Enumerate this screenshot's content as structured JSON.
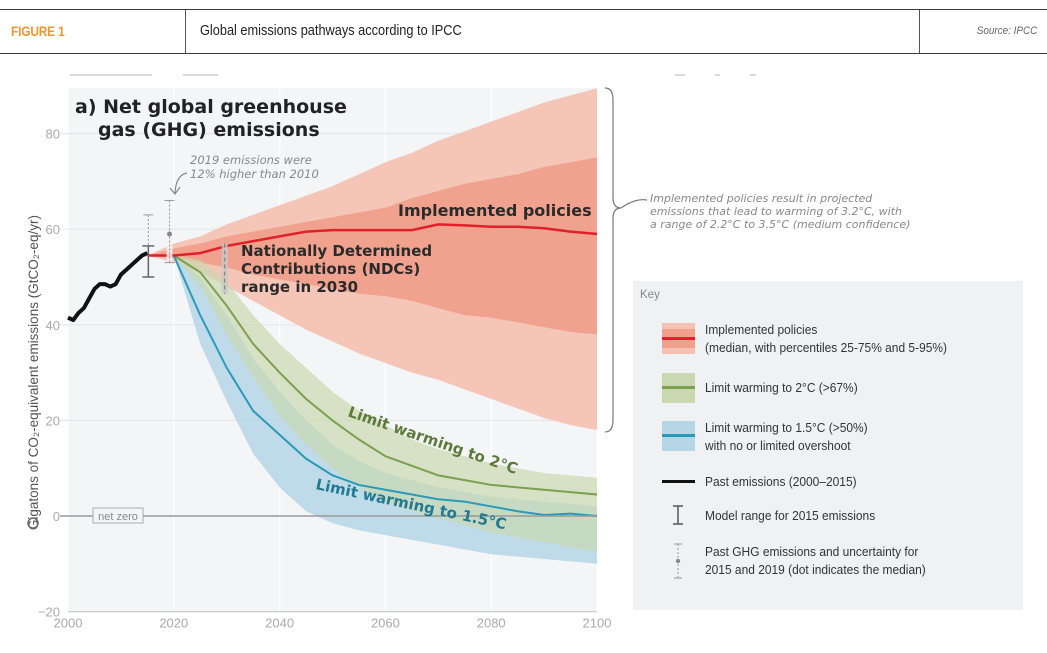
{
  "header": {
    "figure_label": "FIGURE 1",
    "title": "Global emissions pathways according to IPCC",
    "source": "Source: IPCC"
  },
  "colors": {
    "figure_label": "#f0962e",
    "implemented_median": "#e0202a",
    "implemented_outer": "#f4c2b4",
    "implemented_inner": "#f0a08c",
    "two_deg_line": "#7aa050",
    "two_deg_band": "#c9d8b0",
    "one_five_line": "#2a9ab8",
    "one_five_band": "#b5d6e6",
    "past": "#111111",
    "plot_bg": "#f4f5f7"
  },
  "chart_data": {
    "type": "area",
    "title": "a) Net global greenhouse gas (GHG) emissions",
    "title_line1": "a) Net global greenhouse",
    "title_line2": "gas (GHG) emissions",
    "xlabel": "",
    "ylabel": "Gigatons of CO₂-equivalent emissions (GtCO₂-eq/yr)",
    "xlim": [
      2000,
      2100
    ],
    "ylim": [
      -20,
      90
    ],
    "x_ticks": [
      2000,
      2020,
      2040,
      2060,
      2080,
      2100
    ],
    "y_ticks": [
      -20,
      0,
      20,
      40,
      60,
      80
    ],
    "grid": true,
    "net_zero_label": "net zero",
    "series": [
      {
        "name": "Past emissions (2000–2015)",
        "x": [
          2000,
          2001,
          2002,
          2003,
          2004,
          2005,
          2006,
          2007,
          2008,
          2009,
          2010,
          2011,
          2012,
          2013,
          2014,
          2015
        ],
        "values": [
          41.5,
          41,
          42.5,
          43.5,
          45.5,
          47.5,
          48.5,
          48.5,
          48,
          48.5,
          50.5,
          51.5,
          52.5,
          53.5,
          54.5,
          55
        ]
      },
      {
        "name": "Implemented policies",
        "x": [
          2015,
          2020,
          2025,
          2030,
          2035,
          2040,
          2045,
          2050,
          2055,
          2060,
          2065,
          2070,
          2075,
          2080,
          2085,
          2090,
          2095,
          2100
        ],
        "median": [
          54.5,
          54.5,
          55,
          56.5,
          57.5,
          58.5,
          59.5,
          59.8,
          59.8,
          59.8,
          59.8,
          61,
          60.8,
          60.5,
          60.5,
          60.2,
          59.5,
          59
        ],
        "p25": [
          54.5,
          54,
          53,
          52,
          50.5,
          49.5,
          48.5,
          47.5,
          46.5,
          46,
          45,
          43.5,
          42,
          41.5,
          40.5,
          39.5,
          38.5,
          38
        ],
        "p75": [
          54.5,
          56,
          57,
          58.5,
          59.5,
          60.5,
          61.5,
          62.5,
          63.5,
          64.5,
          66.5,
          68,
          69.5,
          70.5,
          71.5,
          73,
          74,
          75
        ],
        "p5": [
          54.5,
          53,
          51,
          48,
          45,
          42,
          39,
          36.5,
          34,
          32,
          30,
          28.5,
          26.5,
          24.5,
          22.5,
          20.5,
          19,
          18
        ],
        "p95": [
          54.5,
          57,
          58.5,
          61,
          63,
          65,
          67,
          69,
          71.5,
          74,
          76,
          78.5,
          80.5,
          82.5,
          84.5,
          86.5,
          88,
          89.5
        ]
      },
      {
        "name": "Limit warming to 2°C (>67%)",
        "x": [
          2020,
          2025,
          2030,
          2035,
          2040,
          2045,
          2050,
          2055,
          2060,
          2065,
          2070,
          2075,
          2080,
          2085,
          2090,
          2095,
          2100
        ],
        "median": [
          54.5,
          51,
          44,
          36,
          30,
          24.5,
          20,
          16,
          12.5,
          10.5,
          8.5,
          7.5,
          6.5,
          6,
          5.5,
          5,
          4.5
        ],
        "low": [
          54.5,
          48,
          38,
          29,
          21,
          15,
          10,
          6,
          3,
          1,
          -0.5,
          -2,
          -3.5,
          -4.5,
          -5.5,
          -6.5,
          -7.5
        ],
        "high": [
          54.5,
          53.5,
          49,
          42,
          36,
          31,
          26,
          22,
          19,
          16,
          14,
          12.5,
          11,
          10,
          9,
          8.5,
          8
        ]
      },
      {
        "name": "Limit warming to 1.5°C (>50%) with no or limited overshoot",
        "x": [
          2020,
          2025,
          2030,
          2035,
          2040,
          2045,
          2050,
          2055,
          2060,
          2065,
          2070,
          2075,
          2080,
          2085,
          2090,
          2095,
          2100
        ],
        "median": [
          54.5,
          42,
          31,
          22,
          17,
          12,
          8.5,
          6.5,
          5.5,
          4.5,
          3.5,
          3,
          2,
          1,
          0.2,
          0.5,
          0
        ],
        "low": [
          54.5,
          36,
          24,
          13,
          6,
          1,
          -1.5,
          -3,
          -4,
          -5,
          -6,
          -7,
          -8,
          -8.5,
          -9,
          -9.5,
          -10
        ],
        "high": [
          54.5,
          50,
          42,
          33,
          26,
          20,
          15,
          11.5,
          9,
          7.5,
          6,
          5,
          4,
          3.5,
          3,
          2.5,
          2
        ]
      }
    ],
    "error_bars": [
      {
        "name": "Model range for 2015 emissions",
        "x": 2015,
        "low": 50,
        "high": 56.5
      },
      {
        "name": "Past GHG emissions uncertainty 2015",
        "x": 2015,
        "low": 50,
        "high": 63,
        "median": 55
      },
      {
        "name": "Past GHG emissions uncertainty 2019",
        "x": 2019,
        "low": 53,
        "high": 66,
        "median": 59
      },
      {
        "name": "NDCs range in 2030",
        "x": 2030,
        "low": 46.5,
        "high": 57
      }
    ],
    "annotations": {
      "emissions_2019_line1": "2019 emissions were",
      "emissions_2019_line2": "12% higher than 2010",
      "implemented_label": "Implemented policies",
      "ndc_line1": "Nationally Determined",
      "ndc_line2": "Contributions (NDCs)",
      "ndc_line3": "range in 2030",
      "two_deg_label": "Limit warming to 2°C",
      "one_five_label": "Limit warming to 1.5°C",
      "brace_line1": "Implemented policies result in projected",
      "brace_line2": "emissions that lead to warming of 3.2°C, with",
      "brace_line3": "a range of 2.2°C to 3.5°C (medium confidence)"
    },
    "legend": {
      "title": "Key",
      "placement": "right",
      "items": [
        {
          "label1": "Implemented policies",
          "label2": "(median, with percentiles 25-75% and 5-95%)"
        },
        {
          "label1": "Limit warming to 2°C (>67%)"
        },
        {
          "label1": "Limit warming to 1.5°C (>50%)",
          "label2": "with no or limited overshoot"
        },
        {
          "label1": "Past emissions (2000–2015)"
        },
        {
          "label1": "Model range for 2015 emissions"
        },
        {
          "label1": "Past GHG emissions and uncertainty for",
          "label2": "2015 and 2019 (dot indicates the median)"
        }
      ]
    }
  }
}
